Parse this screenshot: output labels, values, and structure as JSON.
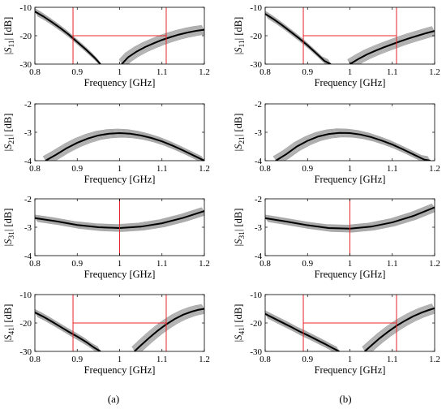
{
  "figure": {
    "panel_labels": [
      "(a)",
      "(b)"
    ]
  },
  "chart_data": [
    {
      "type": "line",
      "column": "a",
      "ylabel": {
        "pre": "|",
        "main": "S",
        "sub": "11",
        "post": "| [dB]"
      },
      "xlabel": "Frequency [GHz]",
      "xlim": [
        0.8,
        1.2
      ],
      "ylim": [
        -30,
        -10
      ],
      "xticks": [
        "0.8",
        "0.9",
        "1",
        "1.1",
        "1.2"
      ],
      "xtick_values": [
        0.8,
        0.9,
        1.0,
        1.1,
        1.2
      ],
      "yticks": [
        "-10",
        "-20",
        "-30"
      ],
      "ytick_values": [
        -10,
        -20,
        -30
      ],
      "spread": 1.5,
      "series": [
        {
          "role": "nominal",
          "color": "#000000",
          "x": [
            0.8,
            0.82,
            0.84,
            0.86,
            0.88,
            0.9,
            0.92,
            0.94,
            0.955
          ],
          "y": [
            -11.5,
            -13.2,
            -15.2,
            -17.3,
            -19.6,
            -22.2,
            -24.8,
            -27.6,
            -30
          ]
        },
        {
          "role": "nominal",
          "color": "#000000",
          "x": [
            1.005,
            1.02,
            1.04,
            1.06,
            1.08,
            1.1,
            1.12,
            1.14,
            1.16,
            1.18,
            1.2
          ],
          "y": [
            -30,
            -27.6,
            -25.6,
            -24,
            -22.7,
            -21.5,
            -20.5,
            -19.6,
            -18.9,
            -18.3,
            -17.9
          ]
        }
      ],
      "spec_lines": [
        {
          "type": "vertical",
          "x": 0.89,
          "color": "#e8242a"
        },
        {
          "type": "vertical",
          "x": 1.11,
          "color": "#e8242a"
        },
        {
          "type": "horizontal",
          "y": -20,
          "x_range": [
            0.89,
            1.11
          ],
          "color": "#e8242a"
        }
      ]
    },
    {
      "type": "line",
      "column": "b",
      "ylabel": {
        "pre": "|",
        "main": "S",
        "sub": "11",
        "post": "| [dB]"
      },
      "xlabel": "Frequency [GHz]",
      "xlim": [
        0.8,
        1.2
      ],
      "ylim": [
        -30,
        -10
      ],
      "xticks": [
        "0.8",
        "0.9",
        "1",
        "1.1",
        "1.2"
      ],
      "xtick_values": [
        0.8,
        0.9,
        1.0,
        1.1,
        1.2
      ],
      "yticks": [
        "-10",
        "-20",
        "-30"
      ],
      "ytick_values": [
        -10,
        -20,
        -30
      ],
      "spread": 1.5,
      "series": [
        {
          "role": "nominal",
          "color": "#000000",
          "x": [
            0.8,
            0.82,
            0.84,
            0.86,
            0.88,
            0.9,
            0.92,
            0.94,
            0.955
          ],
          "y": [
            -12.3,
            -14.2,
            -16.3,
            -18.6,
            -20.9,
            -23.4,
            -26.1,
            -28.9,
            -30
          ]
        },
        {
          "role": "nominal",
          "color": "#000000",
          "x": [
            1.0,
            1.02,
            1.04,
            1.06,
            1.08,
            1.1,
            1.12,
            1.14,
            1.16,
            1.18,
            1.2
          ],
          "y": [
            -30,
            -28.2,
            -26.6,
            -25.3,
            -24.1,
            -23,
            -21.9,
            -20.9,
            -20,
            -19.1,
            -18.3
          ]
        }
      ],
      "spec_lines": [
        {
          "type": "vertical",
          "x": 0.89,
          "color": "#e8242a"
        },
        {
          "type": "vertical",
          "x": 1.11,
          "color": "#e8242a"
        },
        {
          "type": "horizontal",
          "y": -20,
          "x_range": [
            0.89,
            1.11
          ],
          "color": "#e8242a"
        }
      ]
    },
    {
      "type": "line",
      "column": "a",
      "ylabel": {
        "pre": "|",
        "main": "S",
        "sub": "21",
        "post": "| [dB]"
      },
      "xlabel": "Frequency [GHz]",
      "xlim": [
        0.8,
        1.2
      ],
      "ylim": [
        -4,
        -2
      ],
      "xticks": [
        "0.8",
        "0.9",
        "1",
        "1.1",
        "1.2"
      ],
      "xtick_values": [
        0.8,
        0.9,
        1.0,
        1.1,
        1.2
      ],
      "yticks": [
        "-2",
        "-3",
        "-4"
      ],
      "ytick_values": [
        -2,
        -3,
        -4
      ],
      "spread": 0.14,
      "series": [
        {
          "role": "nominal",
          "color": "#000000",
          "x": [
            0.825,
            0.85,
            0.875,
            0.9,
            0.925,
            0.95,
            0.975,
            1.0,
            1.025,
            1.05,
            1.075,
            1.1,
            1.125,
            1.15,
            1.175,
            1.2
          ],
          "y": [
            -4,
            -3.79,
            -3.56,
            -3.37,
            -3.22,
            -3.11,
            -3.05,
            -3.03,
            -3.05,
            -3.11,
            -3.2,
            -3.32,
            -3.47,
            -3.64,
            -3.82,
            -4
          ]
        }
      ],
      "spec_lines": []
    },
    {
      "type": "line",
      "column": "b",
      "ylabel": {
        "pre": "|",
        "main": "S",
        "sub": "21",
        "post": "| [dB]"
      },
      "xlabel": "Frequency [GHz]",
      "xlim": [
        0.8,
        1.2
      ],
      "ylim": [
        -4,
        -2
      ],
      "xticks": [
        "0.8",
        "0.9",
        "1",
        "1.1",
        "1.2"
      ],
      "xtick_values": [
        0.8,
        0.9,
        1.0,
        1.1,
        1.2
      ],
      "yticks": [
        "-2",
        "-3",
        "-4"
      ],
      "ytick_values": [
        -2,
        -3,
        -4
      ],
      "spread": 0.14,
      "series": [
        {
          "role": "nominal",
          "color": "#000000",
          "x": [
            0.825,
            0.85,
            0.875,
            0.9,
            0.925,
            0.95,
            0.975,
            1.0,
            1.025,
            1.05,
            1.075,
            1.1,
            1.125,
            1.15,
            1.175,
            1.19
          ],
          "y": [
            -4,
            -3.77,
            -3.5,
            -3.3,
            -3.15,
            -3.06,
            -3.02,
            -3.03,
            -3.08,
            -3.17,
            -3.29,
            -3.43,
            -3.6,
            -3.78,
            -3.96,
            -4
          ]
        }
      ],
      "spec_lines": []
    },
    {
      "type": "line",
      "column": "a",
      "ylabel": {
        "pre": "|",
        "main": "S",
        "sub": "31",
        "post": "| [dB]"
      },
      "xlabel": "Frequency [GHz]",
      "xlim": [
        0.8,
        1.2
      ],
      "ylim": [
        -4,
        -2
      ],
      "xticks": [
        "0.8",
        "0.9",
        "1",
        "1.1",
        "1.2"
      ],
      "xtick_values": [
        0.8,
        0.9,
        1.0,
        1.1,
        1.2
      ],
      "yticks": [
        "-2",
        "-3",
        "-4"
      ],
      "ytick_values": [
        -2,
        -3,
        -4
      ],
      "spread": 0.12,
      "series": [
        {
          "role": "nominal",
          "color": "#000000",
          "x": [
            0.8,
            0.85,
            0.9,
            0.95,
            1.0,
            1.05,
            1.1,
            1.15,
            1.2
          ],
          "y": [
            -2.68,
            -2.79,
            -2.92,
            -3.0,
            -3.03,
            -2.98,
            -2.86,
            -2.67,
            -2.43
          ]
        }
      ],
      "spec_lines": [
        {
          "type": "vertical",
          "x": 1.0,
          "color": "#e8242a"
        }
      ]
    },
    {
      "type": "line",
      "column": "b",
      "ylabel": {
        "pre": "|",
        "main": "S",
        "sub": "31",
        "post": "| [dB]"
      },
      "xlabel": "Frequency [GHz]",
      "xlim": [
        0.8,
        1.2
      ],
      "ylim": [
        -4,
        -2
      ],
      "xticks": [
        "0.8",
        "0.9",
        "1",
        "1.1",
        "1.2"
      ],
      "xtick_values": [
        0.8,
        0.9,
        1.0,
        1.1,
        1.2
      ],
      "yticks": [
        "-2",
        "-3",
        "-4"
      ],
      "ytick_values": [
        -2,
        -3,
        -4
      ],
      "spread": 0.12,
      "series": [
        {
          "role": "nominal",
          "color": "#000000",
          "x": [
            0.8,
            0.85,
            0.9,
            0.95,
            1.0,
            1.05,
            1.1,
            1.15,
            1.2
          ],
          "y": [
            -2.68,
            -2.8,
            -2.93,
            -3.03,
            -3.05,
            -2.98,
            -2.83,
            -2.6,
            -2.3
          ]
        }
      ],
      "spec_lines": [
        {
          "type": "vertical",
          "x": 1.0,
          "color": "#e8242a"
        }
      ]
    },
    {
      "type": "line",
      "column": "a",
      "ylabel": {
        "pre": "|",
        "main": "S",
        "sub": "41",
        "post": "| [dB]"
      },
      "xlabel": "Frequency [GHz]",
      "xlim": [
        0.8,
        1.2
      ],
      "ylim": [
        -30,
        -10
      ],
      "xticks": [
        "0.8",
        "0.9",
        "1",
        "1.1",
        "1.2"
      ],
      "xtick_values": [
        0.8,
        0.9,
        1.0,
        1.1,
        1.2
      ],
      "yticks": [
        "-10",
        "-20",
        "-30"
      ],
      "ytick_values": [
        -10,
        -20,
        -30
      ],
      "spread": 1.5,
      "series": [
        {
          "role": "nominal",
          "color": "#000000",
          "x": [
            0.8,
            0.82,
            0.84,
            0.86,
            0.88,
            0.9,
            0.92,
            0.94,
            0.955
          ],
          "y": [
            -16.3,
            -17.8,
            -19.5,
            -21.3,
            -23.1,
            -24.8,
            -26.6,
            -28.7,
            -30
          ]
        },
        {
          "role": "nominal",
          "color": "#000000",
          "x": [
            1.035,
            1.05,
            1.07,
            1.09,
            1.11,
            1.13,
            1.15,
            1.17,
            1.185,
            1.2
          ],
          "y": [
            -30,
            -27.9,
            -25.2,
            -22.7,
            -20.5,
            -18.6,
            -17.1,
            -16,
            -15.4,
            -15
          ]
        }
      ],
      "spec_lines": [
        {
          "type": "vertical",
          "x": 0.89,
          "color": "#e8242a"
        },
        {
          "type": "vertical",
          "x": 1.11,
          "color": "#e8242a"
        },
        {
          "type": "horizontal",
          "y": -20,
          "x_range": [
            0.89,
            1.11
          ],
          "color": "#e8242a"
        }
      ]
    },
    {
      "type": "line",
      "column": "b",
      "ylabel": {
        "pre": "|",
        "main": "S",
        "sub": "41",
        "post": "| [dB]"
      },
      "xlabel": "Frequency [GHz]",
      "xlim": [
        0.8,
        1.2
      ],
      "ylim": [
        -30,
        -10
      ],
      "xticks": [
        "0.8",
        "0.9",
        "1",
        "1.1",
        "1.2"
      ],
      "xtick_values": [
        0.8,
        0.9,
        1.0,
        1.1,
        1.2
      ],
      "yticks": [
        "-10",
        "-20",
        "-30"
      ],
      "ytick_values": [
        -10,
        -20,
        -30
      ],
      "spread": 1.5,
      "series": [
        {
          "role": "nominal",
          "color": "#000000",
          "x": [
            0.8,
            0.82,
            0.84,
            0.86,
            0.88,
            0.9,
            0.92,
            0.94,
            0.96,
            0.975
          ],
          "y": [
            -16.8,
            -18.3,
            -19.8,
            -21.3,
            -22.9,
            -24.3,
            -25.8,
            -27.3,
            -28.9,
            -30
          ]
        },
        {
          "role": "nominal",
          "color": "#000000",
          "x": [
            1.035,
            1.05,
            1.07,
            1.09,
            1.11,
            1.13,
            1.15,
            1.17,
            1.185,
            1.2
          ],
          "y": [
            -30,
            -28,
            -25.4,
            -23.1,
            -21,
            -19.2,
            -17.6,
            -16.3,
            -15.5,
            -14.8
          ]
        }
      ],
      "spec_lines": [
        {
          "type": "vertical",
          "x": 0.89,
          "color": "#e8242a"
        },
        {
          "type": "vertical",
          "x": 1.11,
          "color": "#e8242a"
        },
        {
          "type": "horizontal",
          "y": -20,
          "x_range": [
            0.89,
            1.11
          ],
          "color": "#e8242a"
        }
      ]
    }
  ]
}
